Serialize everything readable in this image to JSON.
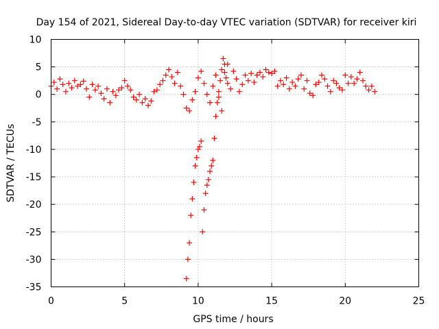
{
  "chart_data": {
    "type": "scatter",
    "title": "Day 154 of 2021, Sidereal Day-to-day VTEC variation (SDTVAR) for receiver kiri",
    "xlabel": "GPS time / hours",
    "ylabel": "SDTVAR / TECUs",
    "xlim": [
      0,
      25
    ],
    "ylim": [
      -35,
      10
    ],
    "xticks": [
      0,
      5,
      10,
      15,
      20,
      25
    ],
    "yticks": [
      -35,
      -30,
      -25,
      -20,
      -15,
      -10,
      -5,
      0,
      5,
      10
    ],
    "grid": true,
    "marker": "+",
    "color": "#ff0000",
    "series": [
      {
        "name": "SDTVAR",
        "x": [
          0.0,
          0.2,
          0.4,
          0.6,
          0.8,
          1.0,
          1.2,
          1.4,
          1.6,
          1.8,
          2.0,
          2.2,
          2.4,
          2.6,
          2.8,
          3.0,
          3.2,
          3.4,
          3.6,
          3.8,
          4.0,
          4.2,
          4.4,
          4.6,
          4.8,
          5.0,
          5.2,
          5.4,
          5.6,
          5.8,
          6.0,
          6.2,
          6.4,
          6.6,
          6.8,
          7.0,
          7.2,
          7.4,
          7.6,
          7.8,
          8.0,
          8.2,
          8.4,
          8.6,
          8.8,
          9.0,
          9.2,
          9.4,
          9.6,
          9.8,
          10.0,
          10.2,
          10.4,
          10.6,
          10.8,
          11.0,
          11.2,
          11.4,
          11.6,
          11.8,
          12.0,
          12.2,
          12.4,
          12.6,
          12.8,
          13.0,
          13.2,
          13.4,
          13.6,
          13.8,
          14.0,
          14.2,
          14.4,
          14.6,
          14.8,
          15.0,
          15.2,
          15.4,
          15.6,
          15.8,
          16.0,
          16.2,
          16.4,
          16.6,
          16.8,
          17.0,
          17.2,
          17.4,
          17.6,
          17.8,
          18.0,
          18.2,
          18.4,
          18.6,
          18.8,
          19.0,
          19.2,
          19.4,
          19.6,
          19.8,
          20.0,
          20.2,
          20.4,
          20.6,
          20.8,
          21.0,
          21.2,
          21.4,
          21.6,
          21.8,
          22.0,
          9.2,
          9.3,
          9.4,
          9.5,
          9.6,
          9.7,
          9.8,
          9.9,
          10.0,
          10.1,
          10.2,
          10.3,
          10.4,
          10.5,
          10.6,
          10.7,
          10.8,
          10.9,
          11.0,
          11.1,
          11.2,
          11.3,
          11.4,
          11.5,
          11.6,
          11.7,
          11.8,
          11.9,
          12.0
        ],
        "y": [
          1.5,
          2.2,
          1.0,
          2.8,
          1.8,
          0.5,
          2.0,
          1.2,
          2.5,
          1.5,
          1.8,
          2.4,
          1.0,
          -0.5,
          1.8,
          0.8,
          1.5,
          0.2,
          -0.8,
          1.0,
          -1.5,
          0.5,
          -0.2,
          0.8,
          1.2,
          2.5,
          1.5,
          0.8,
          -0.5,
          -1.0,
          0.0,
          -1.5,
          -0.8,
          -2.0,
          -1.2,
          0.5,
          0.8,
          1.8,
          2.5,
          3.5,
          4.5,
          3.2,
          2.0,
          4.0,
          1.5,
          0.0,
          -2.5,
          -3.0,
          -1.0,
          0.5,
          3.0,
          4.2,
          2.0,
          0.0,
          -1.5,
          1.5,
          3.5,
          -0.5,
          -3.0,
          4.0,
          5.5,
          1.0,
          4.2,
          2.8,
          0.5,
          1.8,
          3.5,
          2.5,
          3.8,
          2.2,
          3.5,
          4.0,
          3.2,
          4.5,
          4.0,
          3.8,
          4.2,
          1.5,
          2.5,
          1.8,
          3.0,
          1.0,
          2.2,
          1.5,
          2.8,
          3.5,
          1.0,
          2.5,
          0.2,
          -0.2,
          1.8,
          2.2,
          3.5,
          2.8,
          1.5,
          0.5,
          2.5,
          2.0,
          1.2,
          0.8,
          3.5,
          2.0,
          3.2,
          2.0,
          2.8,
          4.0,
          2.5,
          1.5,
          0.8,
          1.5,
          0.5,
          -33.5,
          -30.0,
          -27.0,
          -22.0,
          -19.0,
          -16.0,
          -13.0,
          -11.5,
          -10.0,
          -9.5,
          -8.5,
          -25.0,
          -21.0,
          -18.0,
          -16.5,
          -15.5,
          -14.0,
          -13.0,
          -12.0,
          -8.0,
          -4.0,
          -1.5,
          0.5,
          2.5,
          4.5,
          6.5,
          5.5,
          3.0,
          2.0
        ]
      }
    ]
  }
}
